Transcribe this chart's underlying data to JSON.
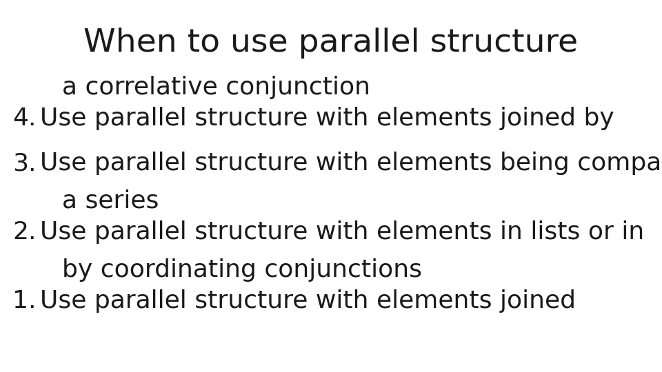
{
  "title": "When to use parallel structure",
  "title_fontsize": 34,
  "title_color": "#1a1a1a",
  "background_color": "#ffffff",
  "items": [
    {
      "number": "1.",
      "line1": "Use parallel structure with elements joined",
      "line2": "by coordinating conjunctions"
    },
    {
      "number": "2.",
      "line1": "Use parallel structure with elements in lists or in",
      "line2": "a series"
    },
    {
      "number": "3.",
      "line1": "Use parallel structure with elements being compared",
      "line2": null
    },
    {
      "number": "4.",
      "line1": "Use parallel structure with elements joined by",
      "line2": "a correlative conjunction"
    }
  ],
  "body_fontsize": 26,
  "body_color": "#1a1a1a",
  "font_family": "DejaVu Sans"
}
